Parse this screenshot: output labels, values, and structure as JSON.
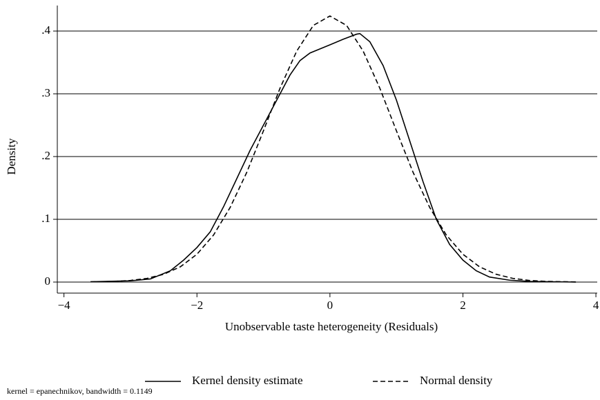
{
  "chart_data": {
    "type": "line",
    "xlabel": "Unobservable taste heterogeneity (Residuals)",
    "ylabel": "Density",
    "note": "kernel = epanechnikov, bandwidth = 0.1149",
    "xlim": [
      -4.1,
      4.02
    ],
    "ylim": [
      -0.0176,
      0.4407
    ],
    "xticks": [
      {
        "value": -4,
        "label": "−4"
      },
      {
        "value": -2,
        "label": "−2"
      },
      0,
      2,
      4
    ],
    "yticks": [
      0,
      {
        "value": 0.1,
        "label": ".1"
      },
      {
        "value": 0.2,
        "label": ".2"
      },
      {
        "value": 0.3,
        "label": ".3"
      },
      {
        "value": 0.4,
        "label": ".4"
      }
    ],
    "grid": true,
    "legend": "bottom",
    "series": [
      {
        "name": "Kernel density estimate",
        "color": "#000000",
        "dash": "solid",
        "x": [
          -3.6,
          -3.0,
          -2.7,
          -2.4,
          -2.2,
          -2.0,
          -1.8,
          -1.6,
          -1.4,
          -1.2,
          -1.0,
          -0.8,
          -0.6,
          -0.45,
          -0.3,
          0.0,
          0.2,
          0.4,
          0.45,
          0.6,
          0.8,
          1.0,
          1.2,
          1.4,
          1.6,
          1.8,
          2.0,
          2.2,
          2.4,
          2.7,
          3.0,
          3.7
        ],
        "values": [
          0.0005,
          0.002,
          0.005,
          0.018,
          0.035,
          0.055,
          0.08,
          0.12,
          0.165,
          0.21,
          0.25,
          0.29,
          0.33,
          0.353,
          0.365,
          0.378,
          0.387,
          0.395,
          0.396,
          0.383,
          0.345,
          0.29,
          0.225,
          0.16,
          0.1,
          0.06,
          0.035,
          0.018,
          0.008,
          0.003,
          0.001,
          0.0
        ]
      },
      {
        "name": "Normal density",
        "color": "#000000",
        "dash": "dashed",
        "x": [
          -3.6,
          -3.25,
          -3.0,
          -2.75,
          -2.5,
          -2.25,
          -2.0,
          -1.75,
          -1.5,
          -1.25,
          -1.0,
          -0.75,
          -0.5,
          -0.25,
          0,
          0.25,
          0.5,
          0.75,
          1.0,
          1.25,
          1.5,
          1.75,
          2.0,
          2.25,
          2.5,
          2.75,
          3.0,
          3.25,
          3.7
        ],
        "values": [
          0.0003,
          0.0011,
          0.0026,
          0.0059,
          0.0124,
          0.0243,
          0.0443,
          0.075,
          0.119,
          0.175,
          0.241,
          0.309,
          0.368,
          0.409,
          0.424,
          0.409,
          0.368,
          0.309,
          0.241,
          0.175,
          0.119,
          0.075,
          0.0443,
          0.0243,
          0.0124,
          0.0059,
          0.0026,
          0.0011,
          0.0002
        ]
      }
    ]
  }
}
